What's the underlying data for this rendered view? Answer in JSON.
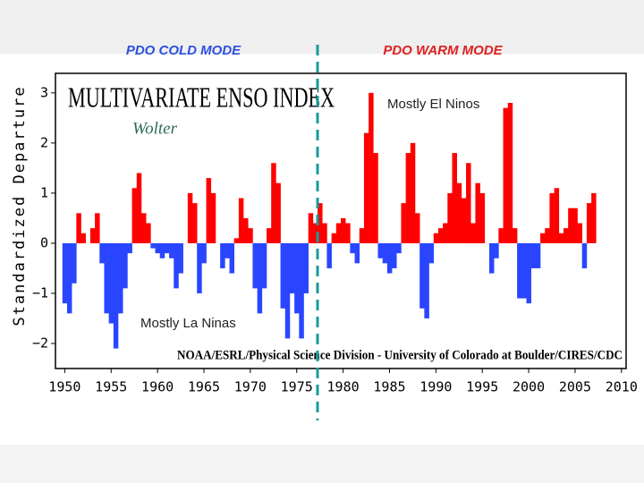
{
  "chart_data": {
    "type": "area",
    "title": "MULTIVARIATE ENSO INDEX",
    "subtitle": "Wolter",
    "ylabel": "Standardized Departure",
    "source": "NOAA/ESRL/Physical Science Division - University of Colorado at Boulder/CIRES/CDC",
    "annotations": {
      "cold": "PDO COLD MODE",
      "warm": "PDO WARM MODE",
      "el_nino": "Mostly El Ninos",
      "la_nina": "Mostly La Ninas"
    },
    "positive_color": "#ff0000",
    "negative_color": "#2a45ff",
    "xlim": [
      1949,
      2010.5
    ],
    "xticks": [
      1950,
      1955,
      1960,
      1965,
      1970,
      1975,
      1980,
      1985,
      1990,
      1995,
      2000,
      2005,
      2010
    ],
    "ylim": [
      -2.5,
      3.39
    ],
    "yticks": [
      3,
      2,
      1,
      0,
      {
        "value": -1,
        "label": "−1"
      },
      {
        "value": -2,
        "label": "−2"
      }
    ],
    "x": [
      1950,
      1950.5,
      1951,
      1951.5,
      1952,
      1952.5,
      1953,
      1953.5,
      1954,
      1954.5,
      1955,
      1955.5,
      1956,
      1956.5,
      1957,
      1957.5,
      1958,
      1958.5,
      1959,
      1959.5,
      1960,
      1960.5,
      1961,
      1961.5,
      1962,
      1962.5,
      1963,
      1963.5,
      1964,
      1964.5,
      1965,
      1965.5,
      1966,
      1966.5,
      1967,
      1967.5,
      1968,
      1968.5,
      1969,
      1969.5,
      1970,
      1970.5,
      1971,
      1971.5,
      1972,
      1972.5,
      1973,
      1973.5,
      1974,
      1974.5,
      1975,
      1975.5,
      1976,
      1976.5,
      1977,
      1977.5,
      1978,
      1978.5,
      1979,
      1979.5,
      1980,
      1980.5,
      1981,
      1981.5,
      1982,
      1982.5,
      1983,
      1983.5,
      1984,
      1984.5,
      1985,
      1985.5,
      1986,
      1986.5,
      1987,
      1987.5,
      1988,
      1988.5,
      1989,
      1989.5,
      1990,
      1990.5,
      1991,
      1991.5,
      1992,
      1992.5,
      1993,
      1993.5,
      1994,
      1994.5,
      1995,
      1995.5,
      1996,
      1996.5,
      1997,
      1997.5,
      1998,
      1998.5,
      1999,
      1999.5,
      2000,
      2000.5,
      2001,
      2001.5,
      2002,
      2002.5,
      2003,
      2003.5,
      2004,
      2004.5,
      2005,
      2005.5,
      2006,
      2006.5,
      2007
    ],
    "values": [
      -1.2,
      -1.4,
      -0.8,
      0.6,
      0.2,
      0.0,
      0.3,
      0.6,
      -0.4,
      -1.4,
      -1.6,
      -2.1,
      -1.4,
      -0.9,
      -0.2,
      1.1,
      1.4,
      0.6,
      0.4,
      -0.1,
      -0.2,
      -0.3,
      -0.2,
      -0.3,
      -0.9,
      -0.6,
      0.0,
      1.0,
      0.8,
      -1.0,
      -0.4,
      1.3,
      1.0,
      0.0,
      -0.5,
      -0.3,
      -0.6,
      0.1,
      0.9,
      0.5,
      0.3,
      -0.9,
      -1.4,
      -0.9,
      0.3,
      1.6,
      1.2,
      -1.3,
      -1.9,
      -1.0,
      -1.4,
      -1.9,
      -1.0,
      0.6,
      0.4,
      0.8,
      0.4,
      -0.5,
      0.2,
      0.4,
      0.5,
      0.4,
      -0.2,
      -0.4,
      0.3,
      2.2,
      3.0,
      1.8,
      -0.3,
      -0.4,
      -0.6,
      -0.5,
      -0.2,
      0.8,
      1.8,
      2.0,
      0.6,
      -1.3,
      -1.5,
      -0.4,
      0.2,
      0.3,
      0.4,
      1.0,
      1.8,
      1.2,
      0.9,
      1.6,
      0.4,
      1.2,
      1.0,
      0.0,
      -0.6,
      -0.3,
      0.3,
      2.7,
      2.8,
      0.3,
      -1.1,
      -1.1,
      -1.2,
      -0.5,
      -0.5,
      0.2,
      0.3,
      1.0,
      1.1,
      0.2,
      0.3,
      0.7,
      0.7,
      0.4,
      -0.5,
      0.8,
      1.0
    ]
  }
}
